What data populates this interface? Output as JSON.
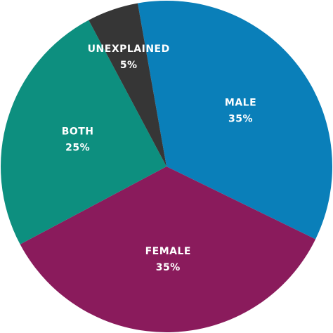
{
  "chart_data": {
    "type": "pie",
    "categories": [
      "MALE",
      "FEMALE",
      "BOTH",
      "UNEXPLAINED"
    ],
    "values": [
      35,
      35,
      25,
      5
    ],
    "value_labels": [
      "35%",
      "35%",
      "25%",
      "5%"
    ],
    "colors": [
      "#0a7fb9",
      "#8a1b5c",
      "#0d8f7f",
      "#363636"
    ]
  }
}
